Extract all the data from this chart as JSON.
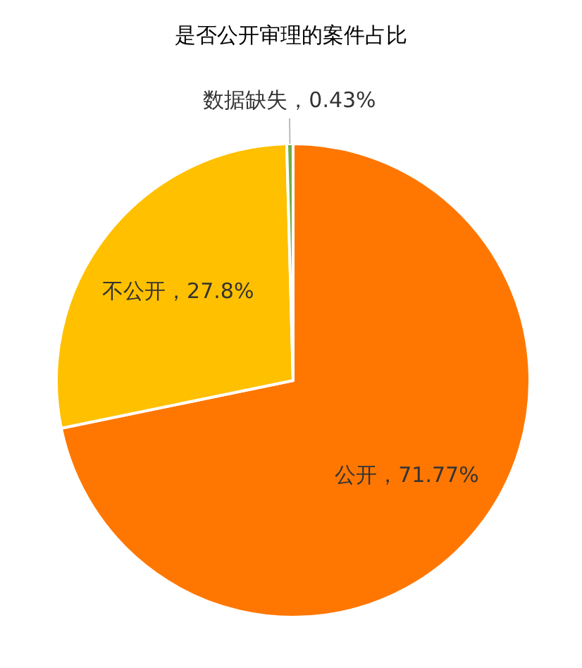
{
  "chart_data": {
    "type": "pie",
    "title": "是否公开审理的案件占比",
    "categories": [
      "公开",
      "不公开",
      "数据缺失"
    ],
    "values": [
      71.77,
      27.8,
      0.43
    ],
    "value_labels": [
      "，71.77%",
      "，27.8%",
      "，0.43%"
    ],
    "colors": [
      "#ff7700",
      "#ffc000",
      "#70ad47"
    ]
  }
}
